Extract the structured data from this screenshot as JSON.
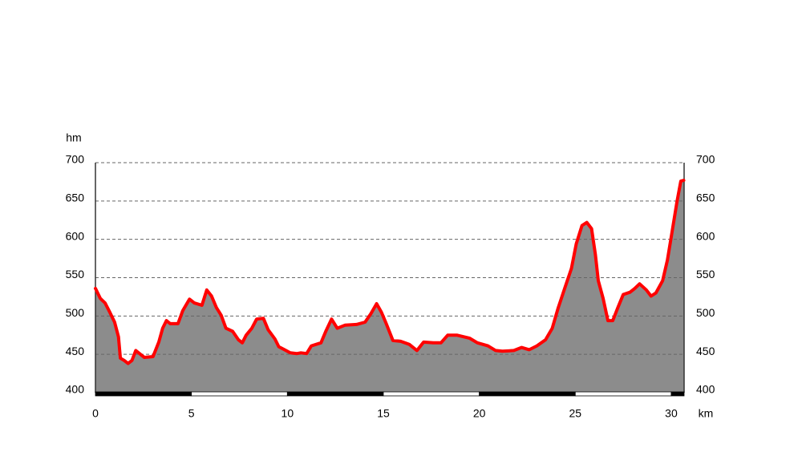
{
  "chart_data": {
    "type": "area",
    "y_label": "hm",
    "x_label": "km",
    "x": [
      0,
      0.25,
      0.5,
      0.75,
      1.0,
      1.2,
      1.3,
      1.5,
      1.7,
      1.9,
      2.1,
      2.35,
      2.55,
      3.0,
      3.3,
      3.5,
      3.7,
      3.9,
      4.3,
      4.55,
      4.9,
      5.15,
      5.55,
      5.8,
      6.05,
      6.3,
      6.55,
      6.8,
      7.15,
      7.45,
      7.65,
      7.85,
      8.15,
      8.4,
      8.75,
      9.0,
      9.35,
      9.55,
      9.85,
      10.15,
      10.5,
      10.7,
      11.0,
      11.25,
      11.75,
      12.0,
      12.3,
      12.6,
      13.0,
      13.6,
      14.05,
      14.35,
      14.65,
      14.9,
      15.15,
      15.5,
      15.9,
      16.35,
      16.75,
      17.1,
      17.6,
      18.0,
      18.35,
      18.85,
      19.5,
      19.9,
      20.45,
      20.85,
      21.2,
      21.8,
      22.2,
      22.6,
      23.0,
      23.45,
      23.8,
      24.1,
      24.45,
      24.8,
      25.05,
      25.35,
      25.6,
      25.85,
      26.05,
      26.2,
      26.45,
      26.7,
      26.95,
      27.2,
      27.5,
      27.85,
      28.1,
      28.35,
      28.7,
      28.95,
      29.2,
      29.55,
      29.8,
      30.05,
      30.3,
      30.5,
      30.65
    ],
    "values": [
      536,
      523,
      517,
      505,
      492,
      473,
      445,
      442,
      438,
      442,
      455,
      450,
      446,
      447,
      466,
      484,
      494,
      490,
      490,
      507,
      522,
      517,
      514,
      534,
      526,
      511,
      501,
      484,
      480,
      469,
      465,
      475,
      484,
      496,
      497,
      482,
      470,
      460,
      456,
      452,
      451,
      452,
      451,
      461,
      465,
      480,
      496,
      484,
      488,
      489,
      492,
      503,
      516,
      505,
      490,
      468,
      467,
      463,
      455,
      466,
      465,
      465,
      475,
      475,
      471,
      465,
      461,
      455,
      454,
      455,
      459,
      456,
      461,
      469,
      484,
      510,
      536,
      562,
      594,
      618,
      622,
      614,
      580,
      546,
      523,
      494,
      494,
      510,
      528,
      531,
      536,
      542,
      534,
      526,
      530,
      546,
      573,
      611,
      649,
      676,
      677
    ],
    "color": "#ff0000",
    "xlim": [
      0,
      30.67
    ],
    "xticks": [
      0,
      5,
      10,
      15,
      20,
      25,
      30
    ],
    "ylim": [
      400,
      700
    ],
    "yticks": [
      400,
      450,
      500,
      550,
      600,
      650,
      700
    ],
    "grid": true
  }
}
